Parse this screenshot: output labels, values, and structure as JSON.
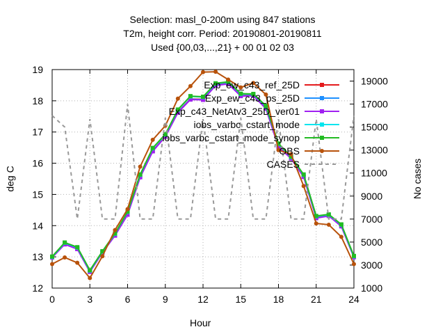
{
  "chart_data": {
    "type": "line",
    "title_lines": [
      "Selection: masl_0-200m using   847 stations",
      "T2m, height corr.   Period: 20190801-20190811",
      "Used {00,03,...,21} + 00 01 02 03"
    ],
    "xlabel": "Hour",
    "ylabel": "deg C",
    "y2label": "No cases",
    "xlim": [
      0,
      24
    ],
    "ylim": [
      12,
      19
    ],
    "y2lim": [
      1000,
      20000
    ],
    "xticks": [
      "0",
      "3",
      "6",
      "9",
      "12",
      "15",
      "18",
      "21",
      "24"
    ],
    "yticks": [
      "12",
      "13",
      "14",
      "15",
      "16",
      "17",
      "18",
      "19"
    ],
    "y2ticks": [
      "1000",
      "3000",
      "5000",
      "7000",
      "9000",
      "11000",
      "13000",
      "15000",
      "17000",
      "19000"
    ],
    "grid": true,
    "legend_position": "top-right",
    "x": [
      0,
      1,
      2,
      3,
      4,
      5,
      6,
      7,
      8,
      9,
      10,
      11,
      12,
      13,
      14,
      15,
      16,
      17,
      18,
      19,
      20,
      21,
      22,
      23,
      24
    ],
    "series": [
      {
        "name": "Exp_ew_c43_ref_25D",
        "color": "#e41a1c",
        "marker": "square",
        "values": [
          12.99,
          13.42,
          13.27,
          12.53,
          13.15,
          13.7,
          14.37,
          15.57,
          16.4,
          16.86,
          17.64,
          18.06,
          18.05,
          18.51,
          18.56,
          18.17,
          18.18,
          17.77,
          16.54,
          16.17,
          15.58,
          14.26,
          14.33,
          13.99,
          13.0
        ]
      },
      {
        "name": "Exp_ew_c43_ps_25D",
        "color": "#1e90ff",
        "marker": "square",
        "values": [
          12.99,
          13.41,
          13.26,
          12.52,
          13.14,
          13.69,
          14.36,
          15.56,
          16.39,
          16.86,
          17.63,
          18.05,
          18.04,
          18.5,
          18.55,
          18.16,
          18.17,
          17.76,
          16.53,
          16.16,
          15.57,
          14.25,
          14.32,
          13.98,
          12.99
        ]
      },
      {
        "name": "Exp_c43_NetAtv3_25D_ver01",
        "color": "#a020f0",
        "marker": "square",
        "values": [
          12.98,
          13.4,
          13.25,
          12.52,
          13.14,
          13.68,
          14.35,
          15.55,
          16.38,
          16.85,
          17.62,
          18.04,
          18.03,
          18.49,
          18.54,
          18.15,
          18.16,
          17.75,
          16.52,
          16.15,
          15.56,
          14.24,
          14.31,
          13.98,
          12.99
        ]
      },
      {
        "name": "iobs_varbc_cstart_mode",
        "color": "#00e5ee",
        "marker": "square",
        "values": [
          13.0,
          13.45,
          13.3,
          12.56,
          13.17,
          13.74,
          14.44,
          15.63,
          16.48,
          16.92,
          17.71,
          18.14,
          18.12,
          18.55,
          18.6,
          18.22,
          18.21,
          17.83,
          16.62,
          16.2,
          15.63,
          14.3,
          14.35,
          14.03,
          13.02
        ]
      },
      {
        "name": "iobs_varbc_cstart_mode_synop",
        "color": "#22bb22",
        "marker": "square",
        "values": [
          13.01,
          13.46,
          13.31,
          12.57,
          13.18,
          13.75,
          14.45,
          15.64,
          16.49,
          16.93,
          17.72,
          18.15,
          18.13,
          18.56,
          18.61,
          18.23,
          18.22,
          17.84,
          16.63,
          16.21,
          15.64,
          14.31,
          14.36,
          14.04,
          13.03
        ]
      },
      {
        "name": "OBS",
        "color": "#b8520b",
        "marker": "circle",
        "values": [
          12.77,
          12.98,
          12.81,
          12.32,
          13.02,
          13.86,
          14.53,
          15.89,
          16.75,
          17.2,
          18.07,
          18.47,
          18.92,
          18.93,
          18.68,
          18.43,
          18.57,
          18.2,
          16.42,
          16.29,
          15.27,
          14.07,
          14.03,
          13.64,
          12.77
        ]
      },
      {
        "name": "CASES",
        "color": "#999999",
        "marker": "none",
        "dash": true,
        "axis": "y2",
        "values": [
          16000,
          15000,
          7000,
          15700,
          7000,
          7000,
          17000,
          7000,
          7000,
          15800,
          7000,
          7000,
          15700,
          7000,
          7000,
          15800,
          7000,
          7000,
          15700,
          7000,
          7000,
          15700,
          7000,
          7000,
          16000
        ]
      }
    ]
  }
}
